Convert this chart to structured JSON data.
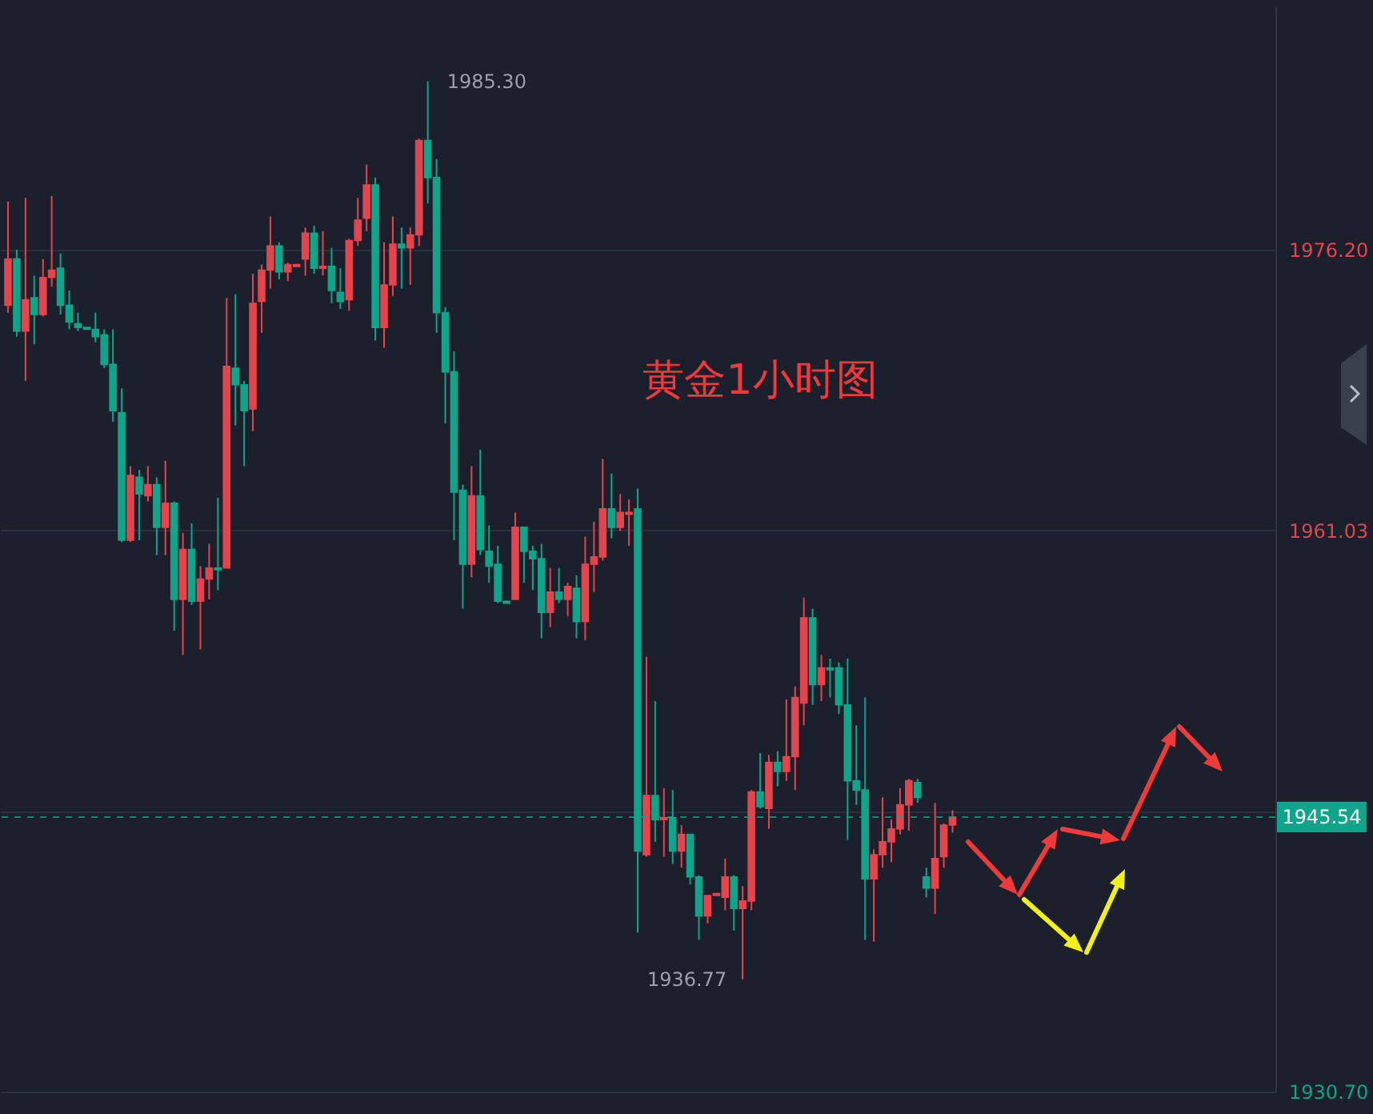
{
  "chart_data": {
    "type": "candlestick",
    "categories": [
      null,
      null,
      null,
      null,
      null,
      null,
      null,
      null,
      null,
      null,
      null,
      null,
      null,
      null,
      null,
      null,
      null,
      null,
      null,
      null,
      null,
      null,
      null,
      null,
      null,
      null,
      null,
      null,
      null,
      null,
      null,
      null,
      null,
      null,
      null,
      null,
      null,
      null,
      null,
      null,
      null,
      null,
      null,
      null,
      null,
      null,
      null,
      null,
      null,
      null,
      null,
      null,
      null,
      null,
      null,
      null,
      null,
      null,
      null,
      null,
      null,
      null,
      null,
      null,
      null,
      null,
      null,
      null,
      null,
      null,
      null,
      null,
      null,
      null,
      null,
      null,
      null,
      null,
      null,
      null,
      null,
      null,
      null,
      null,
      null,
      null,
      null,
      null,
      null,
      null,
      null,
      null,
      null,
      null,
      null,
      null,
      null,
      null,
      null,
      null,
      null,
      null,
      null,
      null,
      null,
      null,
      null,
      null,
      null,
      null,
      null,
      null,
      null,
      null,
      null,
      null,
      null,
      null,
      null,
      null,
      null,
      null,
      null,
      null,
      null,
      null,
      null,
      null,
      null,
      null,
      null,
      null,
      null,
      null,
      null,
      null,
      null,
      null,
      null,
      null,
      null,
      null,
      null,
      null,
      null
    ],
    "ohlc": [
      [
        1973.2,
        1978.8,
        1972.8,
        1975.7
      ],
      [
        1975.7,
        1976.2,
        1971.5,
        1971.8
      ],
      [
        1971.8,
        1979.0,
        1969.1,
        1973.5
      ],
      [
        1973.6,
        1974.8,
        1971.1,
        1972.7
      ],
      [
        1972.7,
        1975.7,
        1972.6,
        1974.7
      ],
      [
        1974.7,
        1979.1,
        1974.2,
        1975.1
      ],
      [
        1975.2,
        1976.0,
        1972.7,
        1973.2
      ],
      [
        1973.2,
        1974.0,
        1971.9,
        1972.3
      ],
      [
        1972.2,
        1972.8,
        1971.8,
        1972.0
      ],
      [
        1972.0,
        1972.0,
        1971.9,
        1971.9
      ],
      [
        1971.9,
        1972.8,
        1971.2,
        1971.5
      ],
      [
        1971.6,
        1971.9,
        1969.8,
        1970.0
      ],
      [
        1970.0,
        1971.9,
        1966.9,
        1967.5
      ],
      [
        1967.4,
        1968.7,
        1960.4,
        1960.5
      ],
      [
        1960.5,
        1964.5,
        1960.4,
        1964.0
      ],
      [
        1963.9,
        1964.3,
        1960.5,
        1963.0
      ],
      [
        1962.9,
        1964.5,
        1962.6,
        1963.5
      ],
      [
        1963.5,
        1963.9,
        1959.7,
        1961.2
      ],
      [
        1961.2,
        1964.8,
        1959.7,
        1962.5
      ],
      [
        1962.5,
        1962.6,
        1955.6,
        1957.3
      ],
      [
        1957.3,
        1960.9,
        1954.3,
        1960.0
      ],
      [
        1960.0,
        1961.4,
        1957.0,
        1957.2
      ],
      [
        1957.2,
        1959.1,
        1954.6,
        1958.4
      ],
      [
        1958.4,
        1960.3,
        1957.3,
        1959.0
      ],
      [
        1959.0,
        1962.8,
        1957.8,
        1958.9
      ],
      [
        1959.0,
        1973.6,
        1959.0,
        1969.9
      ],
      [
        1969.8,
        1973.8,
        1966.7,
        1968.9
      ],
      [
        1968.9,
        1969.1,
        1964.5,
        1967.5
      ],
      [
        1967.6,
        1974.9,
        1966.4,
        1973.3
      ],
      [
        1973.4,
        1975.4,
        1971.7,
        1975.1
      ],
      [
        1975.1,
        1978.0,
        1974.1,
        1976.4
      ],
      [
        1976.4,
        1976.6,
        1974.6,
        1975.0
      ],
      [
        1975.0,
        1975.5,
        1974.5,
        1975.4
      ],
      [
        1975.3,
        1975.4,
        1975.3,
        1975.4
      ],
      [
        1975.7,
        1977.4,
        1974.8,
        1977.1
      ],
      [
        1977.1,
        1977.5,
        1974.9,
        1975.2
      ],
      [
        1975.2,
        1977.2,
        1974.8,
        1975.3
      ],
      [
        1975.3,
        1976.3,
        1973.3,
        1974.0
      ],
      [
        1973.9,
        1975.2,
        1973.0,
        1973.4
      ],
      [
        1973.5,
        1976.8,
        1972.9,
        1976.7
      ],
      [
        1976.7,
        1979.0,
        1976.4,
        1977.8
      ],
      [
        1977.9,
        1980.8,
        1977.2,
        1979.7
      ],
      [
        1979.7,
        1980.1,
        1971.3,
        1972.0
      ],
      [
        1972.0,
        1976.6,
        1970.9,
        1974.3
      ],
      [
        1974.3,
        1978.0,
        1973.7,
        1976.5
      ],
      [
        1976.5,
        1977.4,
        1974.1,
        1976.3
      ],
      [
        1976.3,
        1977.4,
        1974.3,
        1977.0
      ],
      [
        1977.0,
        1982.2,
        1976.4,
        1982.1
      ],
      [
        1982.1,
        1985.3,
        1978.7,
        1980.1
      ],
      [
        1980.1,
        1981.1,
        1971.7,
        1972.8
      ],
      [
        1972.8,
        1973.1,
        1966.8,
        1969.6
      ],
      [
        1969.6,
        1970.7,
        1960.5,
        1963.1
      ],
      [
        1963.2,
        1963.5,
        1956.8,
        1959.2
      ],
      [
        1959.2,
        1964.5,
        1958.5,
        1962.9
      ],
      [
        1962.9,
        1965.4,
        1959.7,
        1960.0
      ],
      [
        1959.9,
        1961.3,
        1958.2,
        1959.1
      ],
      [
        1959.2,
        1960.2,
        1957.1,
        1957.2
      ],
      [
        1957.2,
        1957.2,
        1957.1,
        1957.1
      ],
      [
        1957.3,
        1962.0,
        1957.3,
        1961.2
      ],
      [
        1961.2,
        1961.2,
        1958.2,
        1959.9
      ],
      [
        1959.9,
        1960.2,
        1957.8,
        1959.5
      ],
      [
        1959.5,
        1960.3,
        1955.2,
        1956.6
      ],
      [
        1956.6,
        1959.0,
        1955.8,
        1957.7
      ],
      [
        1957.7,
        1959.0,
        1957.1,
        1957.3
      ],
      [
        1957.3,
        1958.2,
        1956.4,
        1958.0
      ],
      [
        1957.9,
        1958.6,
        1955.2,
        1956.1
      ],
      [
        1956.1,
        1960.7,
        1955.1,
        1959.2
      ],
      [
        1959.2,
        1961.5,
        1957.7,
        1959.6
      ],
      [
        1959.6,
        1964.9,
        1959.4,
        1962.2
      ],
      [
        1962.2,
        1964.1,
        1960.6,
        1961.2
      ],
      [
        1961.2,
        1963.0,
        1961.0,
        1962.0
      ],
      [
        1961.9,
        1962.7,
        1960.2,
        1962.0
      ],
      [
        1962.2,
        1963.3,
        1939.3,
        1943.7
      ],
      [
        1943.5,
        1954.2,
        1943.4,
        1946.7
      ],
      [
        1946.7,
        1951.8,
        1944.2,
        1945.4
      ],
      [
        1945.4,
        1947.1,
        1943.4,
        1945.5
      ],
      [
        1945.5,
        1947.0,
        1943.0,
        1943.7
      ],
      [
        1943.7,
        1945.1,
        1942.8,
        1944.6
      ],
      [
        1944.6,
        1944.6,
        1941.9,
        1942.3
      ],
      [
        1942.3,
        1942.4,
        1938.9,
        1940.2
      ],
      [
        1940.2,
        1941.3,
        1939.8,
        1941.3
      ],
      [
        1941.3,
        1941.4,
        1941.3,
        1941.4
      ],
      [
        1941.2,
        1943.3,
        1940.5,
        1942.3
      ],
      [
        1942.3,
        1942.4,
        1939.4,
        1940.6
      ],
      [
        1940.6,
        1941.8,
        1936.77,
        1941.0
      ],
      [
        1941.0,
        1947.0,
        1940.5,
        1946.9
      ],
      [
        1946.9,
        1949.0,
        1946.0,
        1946.1
      ],
      [
        1946.0,
        1948.9,
        1944.9,
        1948.5
      ],
      [
        1948.5,
        1949.1,
        1947.2,
        1948.0
      ],
      [
        1948.0,
        1951.9,
        1947.5,
        1948.8
      ],
      [
        1948.8,
        1952.6,
        1947.0,
        1952.0
      ],
      [
        1951.7,
        1957.4,
        1950.5,
        1956.3
      ],
      [
        1956.3,
        1956.8,
        1951.6,
        1952.7
      ],
      [
        1952.7,
        1954.3,
        1951.8,
        1953.6
      ],
      [
        1953.6,
        1954.1,
        1952.0,
        1953.5
      ],
      [
        1953.6,
        1953.9,
        1951.1,
        1951.6
      ],
      [
        1951.6,
        1954.1,
        1944.3,
        1947.5
      ],
      [
        1947.5,
        1950.5,
        1946.2,
        1947.0
      ],
      [
        1947.0,
        1952.0,
        1938.9,
        1942.2
      ],
      [
        1942.2,
        1943.8,
        1938.8,
        1943.5
      ],
      [
        1943.5,
        1946.6,
        1942.8,
        1944.2
      ],
      [
        1944.2,
        1945.4,
        1943.1,
        1944.9
      ],
      [
        1944.9,
        1947.1,
        1944.6,
        1946.2
      ],
      [
        1946.2,
        1947.6,
        1944.8,
        1947.5
      ],
      [
        1947.4,
        1947.6,
        1946.3,
        1946.6
      ],
      [
        1942.3,
        1942.8,
        1941.2,
        1941.7
      ],
      [
        1941.7,
        1946.3,
        1940.3,
        1943.3
      ],
      [
        1943.4,
        1945.2,
        1942.8,
        1945.1
      ],
      [
        1945.1,
        1945.9,
        1944.7,
        1945.54
      ],
      null,
      null,
      null,
      null,
      null,
      null,
      null,
      null,
      null,
      null,
      null,
      null,
      null,
      null,
      null,
      null,
      null,
      null,
      null,
      null,
      null,
      null,
      null,
      null,
      null,
      null,
      null,
      null,
      null,
      null,
      null,
      null,
      null,
      null,
      null,
      null
    ],
    "colors": [
      "#e5444d",
      "#0ea58a",
      "#e5444d",
      "#0ea58a",
      "#e5444d",
      "#e5444d",
      "#0ea58a",
      "#0ea58a",
      "#0ea58a",
      "#0ea58a",
      "#0ea58a",
      "#0ea58a",
      "#0ea58a",
      "#0ea58a",
      "#e5444d",
      "#0ea58a",
      "#e5444d",
      "#0ea58a",
      "#e5444d",
      "#0ea58a",
      "#e5444d",
      "#0ea58a",
      "#e5444d",
      "#e5444d",
      "#0ea58a",
      "#e5444d",
      "#0ea58a",
      "#0ea58a",
      "#e5444d",
      "#e5444d",
      "#e5444d",
      "#0ea58a",
      "#e5444d",
      "#e5444d",
      "#e5444d",
      "#0ea58a",
      "#e5444d",
      "#0ea58a",
      "#0ea58a",
      "#e5444d",
      "#e5444d",
      "#e5444d",
      "#0ea58a",
      "#e5444d",
      "#e5444d",
      "#0ea58a",
      "#e5444d",
      "#e5444d",
      "#0ea58a",
      "#0ea58a",
      "#0ea58a",
      "#0ea58a",
      "#0ea58a",
      "#e5444d",
      "#0ea58a",
      "#0ea58a",
      "#0ea58a",
      "#0ea58a",
      "#e5444d",
      "#0ea58a",
      "#0ea58a",
      "#0ea58a",
      "#e5444d",
      "#0ea58a",
      "#e5444d",
      "#0ea58a",
      "#e5444d",
      "#e5444d",
      "#e5444d",
      "#0ea58a",
      "#e5444d",
      "#e5444d",
      "#0ea58a",
      "#e5444d",
      "#0ea58a",
      "#e5444d",
      "#0ea58a",
      "#e5444d",
      "#0ea58a",
      "#0ea58a",
      "#e5444d",
      "#e5444d",
      "#e5444d",
      "#0ea58a",
      "#e5444d",
      "#e5444d",
      "#0ea58a",
      "#e5444d",
      "#0ea58a",
      "#e5444d",
      "#e5444d",
      "#e5444d",
      "#0ea58a",
      "#e5444d",
      "#0ea58a",
      "#0ea58a",
      "#0ea58a",
      "#0ea58a",
      "#0ea58a",
      "#e5444d",
      "#e5444d",
      "#e5444d",
      "#e5444d",
      "#e5444d",
      "#0ea58a",
      "#0ea58a",
      "#e5444d",
      "#e5444d",
      "#e5444d",
      null,
      null,
      null,
      null,
      null,
      null,
      null,
      null,
      null,
      null,
      null,
      null,
      null,
      null,
      null,
      null,
      null,
      null,
      null,
      null,
      null,
      null,
      null,
      null,
      null,
      null,
      null,
      null,
      null,
      null,
      null,
      null,
      null,
      null,
      null,
      null
    ],
    "ylim": [
      1930.7,
      1989.35
    ],
    "yticks": [
      {
        "value": 1930.7,
        "label": "1930.70"
      },
      {
        "value": 1945.86,
        "label": null
      },
      1961.03,
      {
        "value": 1976.2,
        "label": "1976.20"
      }
    ],
    "grid": "y",
    "ref_lines": [
      {
        "axis": "y",
        "value": 1945.54,
        "label": "1945.54",
        "color": "#0ea58a",
        "line_style": "dashed"
      }
    ],
    "annotations": [
      "黄金1小时图",
      "1985.30",
      "1936.77"
    ]
  }
}
